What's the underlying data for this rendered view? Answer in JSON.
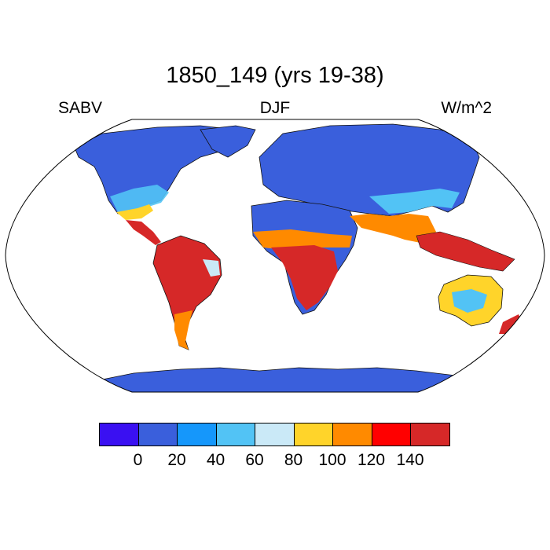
{
  "title": "1850_149 (yrs 19-38)",
  "left_label": "SABV",
  "center_label": "DJF",
  "right_label": "W/m^2",
  "colorbar": {
    "colors": [
      "#3a10f2",
      "#3a5fdc",
      "#1597fb",
      "#52c3f5",
      "#cae9f7",
      "#ffd42a",
      "#ff8a00",
      "#ff0000",
      "#d62828"
    ],
    "tick_labels": [
      "0",
      "20",
      "40",
      "60",
      "80",
      "100",
      "120",
      "140"
    ]
  },
  "projection": "Robinson",
  "regions": {
    "high_latitudes": "#3a5fdc",
    "north_africa_mideast": "#3a5fdc",
    "tropics": "#d62828",
    "subtropics": "#ff8a00",
    "antarctica": "#3a5fdc"
  }
}
